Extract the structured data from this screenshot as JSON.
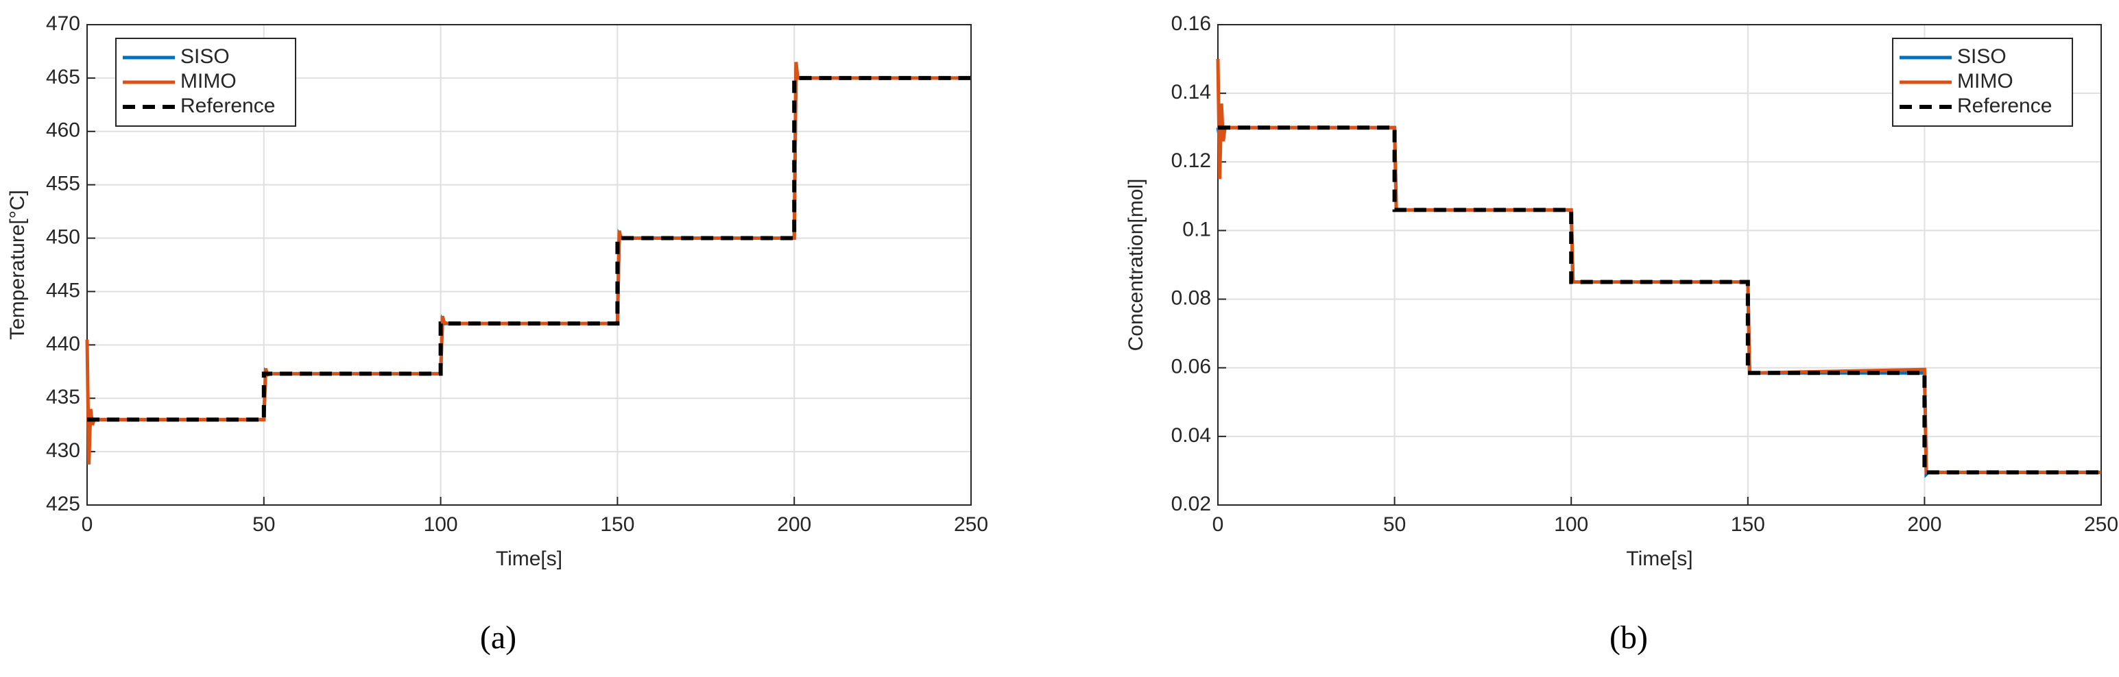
{
  "chart_data": [
    {
      "type": "line",
      "caption": "(a)",
      "xlabel": "Time[s]",
      "ylabel": "Temperature[°C]",
      "x": [
        0,
        0.5,
        1,
        1.5,
        2,
        3,
        50,
        50,
        50.5,
        51,
        52,
        100,
        100,
        100.5,
        101,
        102,
        150,
        150,
        150.5,
        151,
        152,
        200,
        200,
        200.5,
        201,
        202,
        250
      ],
      "series": [
        {
          "name": "SISO",
          "color": "#0072bd",
          "dashed": false,
          "values": [
            433,
            433,
            433.3,
            433,
            433,
            433,
            433,
            433,
            437.5,
            437.3,
            437.3,
            437.3,
            437.3,
            442.3,
            442,
            442,
            442,
            442,
            450.3,
            450,
            450,
            450,
            450,
            466,
            465,
            465,
            465
          ]
        },
        {
          "name": "MIMO",
          "color": "#d95319",
          "dashed": false,
          "values": [
            440.5,
            428.8,
            434,
            432.5,
            433,
            433,
            433,
            433,
            437.8,
            437.2,
            437.3,
            437.3,
            437.3,
            442.7,
            442.1,
            442,
            442,
            442,
            450.7,
            450,
            450,
            450,
            450,
            466.5,
            465,
            465,
            465
          ]
        },
        {
          "name": "Reference",
          "color": "#000000",
          "dashed": true,
          "values": [
            433,
            433,
            433,
            433,
            433,
            433,
            433,
            437.3,
            437.3,
            437.3,
            437.3,
            437.3,
            442,
            442,
            442,
            442,
            442,
            450,
            450,
            450,
            450,
            450,
            465,
            465,
            465,
            465,
            465
          ]
        }
      ],
      "xlim": [
        0,
        250
      ],
      "xticks": [
        0,
        50,
        100,
        150,
        200,
        250
      ],
      "ylim": [
        425,
        470
      ],
      "yticks": [
        425,
        430,
        435,
        440,
        445,
        450,
        455,
        460,
        465,
        470
      ],
      "grid": true,
      "legend": "upper left"
    },
    {
      "type": "line",
      "caption": "(b)",
      "xlabel": "Time[s]",
      "ylabel": "Concentration[mol]",
      "x": [
        0,
        0.5,
        1,
        1.5,
        2,
        3,
        50,
        50,
        50.5,
        51,
        52,
        100,
        100,
        100.5,
        101,
        102,
        150,
        150,
        150.5,
        151,
        152,
        200,
        200,
        200.5,
        201,
        202,
        250
      ],
      "series": [
        {
          "name": "SISO",
          "color": "#0072bd",
          "dashed": false,
          "values": [
            0.13,
            0.127,
            0.131,
            0.129,
            0.13,
            0.13,
            0.13,
            0.13,
            0.106,
            0.106,
            0.106,
            0.106,
            0.106,
            0.085,
            0.085,
            0.085,
            0.085,
            0.085,
            0.0585,
            0.0585,
            0.0585,
            0.0585,
            0.0585,
            0.029,
            0.0295,
            0.0295,
            0.0295
          ]
        },
        {
          "name": "MIMO",
          "color": "#d95319",
          "dashed": false,
          "values": [
            0.15,
            0.115,
            0.137,
            0.126,
            0.13,
            0.13,
            0.13,
            0.13,
            0.106,
            0.106,
            0.106,
            0.106,
            0.106,
            0.085,
            0.085,
            0.085,
            0.085,
            0.085,
            0.0585,
            0.0585,
            0.0585,
            0.0595,
            0.0595,
            0.0295,
            0.0295,
            0.0295,
            0.0295
          ]
        },
        {
          "name": "Reference",
          "color": "#000000",
          "dashed": true,
          "values": [
            0.13,
            0.13,
            0.13,
            0.13,
            0.13,
            0.13,
            0.13,
            0.106,
            0.106,
            0.106,
            0.106,
            0.106,
            0.085,
            0.085,
            0.085,
            0.085,
            0.085,
            0.0585,
            0.0585,
            0.0585,
            0.0585,
            0.0585,
            0.0295,
            0.0295,
            0.0295,
            0.0295,
            0.0295
          ]
        }
      ],
      "xlim": [
        0,
        250
      ],
      "xticks": [
        0,
        50,
        100,
        150,
        200,
        250
      ],
      "ylim": [
        0.02,
        0.16
      ],
      "yticks": [
        0.02,
        0.04,
        0.06,
        0.08,
        0.1,
        0.12,
        0.14,
        0.16
      ],
      "grid": true,
      "legend": "upper right"
    }
  ]
}
